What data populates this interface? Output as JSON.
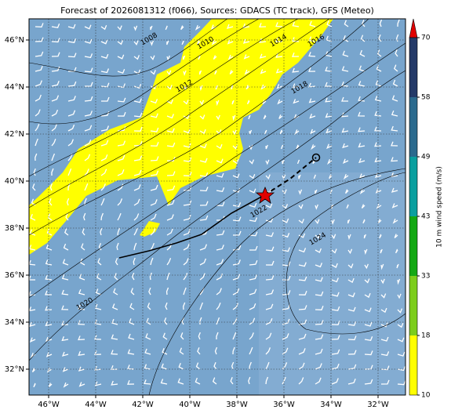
{
  "title": "Forecast of 2026081312 (f066), Sources: GDACS (TC track), GFS (Meteo)",
  "lon_ticks": [
    {
      "value": -46,
      "label": "46°W"
    },
    {
      "value": -44,
      "label": "44°W"
    },
    {
      "value": -42,
      "label": "42°W"
    },
    {
      "value": -40,
      "label": "40°W"
    },
    {
      "value": -38,
      "label": "38°W"
    },
    {
      "value": -36,
      "label": "36°W"
    },
    {
      "value": -34,
      "label": "34°W"
    },
    {
      "value": -32,
      "label": "32°W"
    }
  ],
  "lat_ticks": [
    {
      "value": 46,
      "label": "46°N"
    },
    {
      "value": 44,
      "label": "44°N"
    },
    {
      "value": 42,
      "label": "42°N"
    },
    {
      "value": 40,
      "label": "40°N"
    },
    {
      "value": 38,
      "label": "38°N"
    },
    {
      "value": 36,
      "label": "36°N"
    },
    {
      "value": 34,
      "label": "34°N"
    },
    {
      "value": 32,
      "label": "32°N"
    }
  ],
  "colorbar": {
    "label": "10 m wind speed (m/s)",
    "ticks": [
      10,
      18,
      33,
      43,
      49,
      58,
      70
    ],
    "colors": [
      "#ffff00",
      "#7ccd1c",
      "#14a814",
      "#0a9f9f",
      "#2b6a8e",
      "#243a68"
    ],
    "extend_color": "#e00000"
  },
  "isobar_labels": [
    "1008",
    "1010",
    "1012",
    "1014",
    "1016",
    "1018",
    "1020",
    "1022",
    "1024"
  ]
}
